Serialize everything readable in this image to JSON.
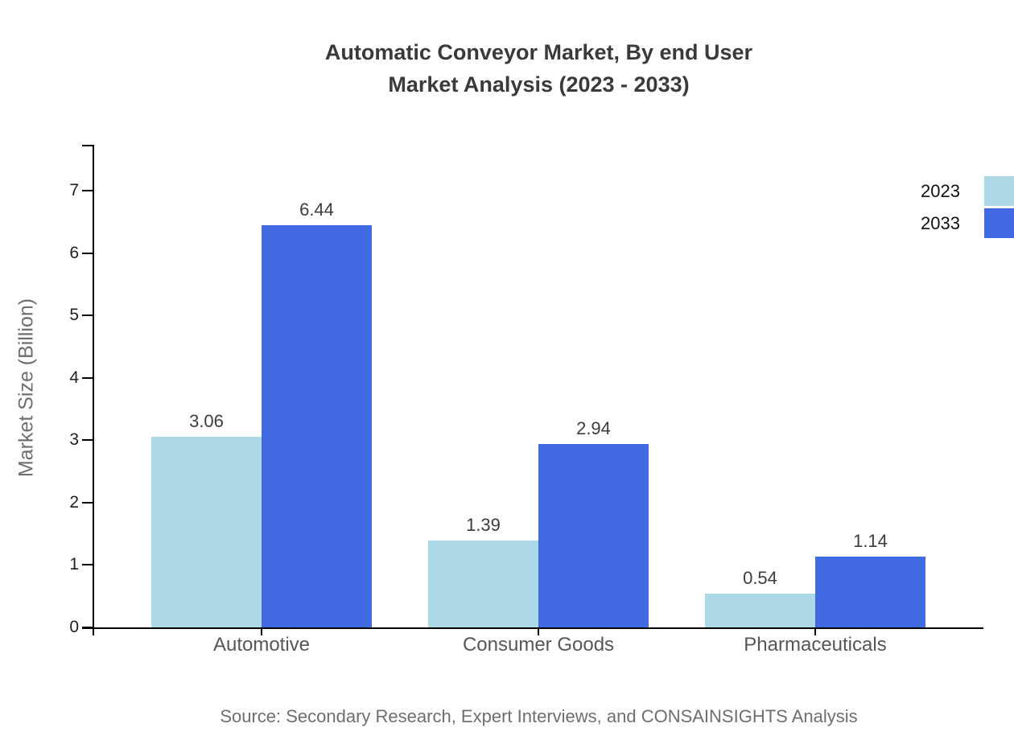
{
  "title": {
    "line1": "Automatic Conveyor Market, By end User",
    "line2": "Market Analysis (2023 - 2033)"
  },
  "y_axis": {
    "label": "Market Size (Billion)",
    "tick_labels": [
      "0",
      "1",
      "2",
      "3",
      "4",
      "5",
      "6",
      "7"
    ]
  },
  "source": "Source: Secondary Research, Expert Interviews, and CONSAINSIGHTS Analysis",
  "legend": {
    "items": [
      {
        "label": "2023",
        "color": "#ADD8E6"
      },
      {
        "label": "2033",
        "color": "#4169E1"
      }
    ]
  },
  "colors": {
    "series_2023": "#ADD8E6",
    "series_2033": "#4169E1",
    "axis": "#000000",
    "title_text": "#3A3A3A"
  },
  "chart_data": {
    "type": "bar",
    "title": "Automatic Conveyor Market, By end User Market Analysis (2023 - 2033)",
    "categories": [
      "Automotive",
      "Consumer Goods",
      "Pharmaceuticals"
    ],
    "series": [
      {
        "name": "2023",
        "color": "#ADD8E6",
        "values": [
          3.06,
          1.39,
          0.54
        ]
      },
      {
        "name": "2033",
        "color": "#4169E1",
        "values": [
          6.44,
          2.94,
          1.14
        ]
      }
    ],
    "value_labels": [
      [
        "3.06",
        "1.39",
        "0.54"
      ],
      [
        "6.44",
        "2.94",
        "1.14"
      ]
    ],
    "xlabel": "",
    "ylabel": "Market Size (Billion)",
    "ylim": [
      0,
      7.73
    ],
    "yticks": [
      0,
      1,
      2,
      3,
      4,
      5,
      6,
      7
    ],
    "grid": false,
    "legend_position": "upper right, flush with right edge"
  }
}
